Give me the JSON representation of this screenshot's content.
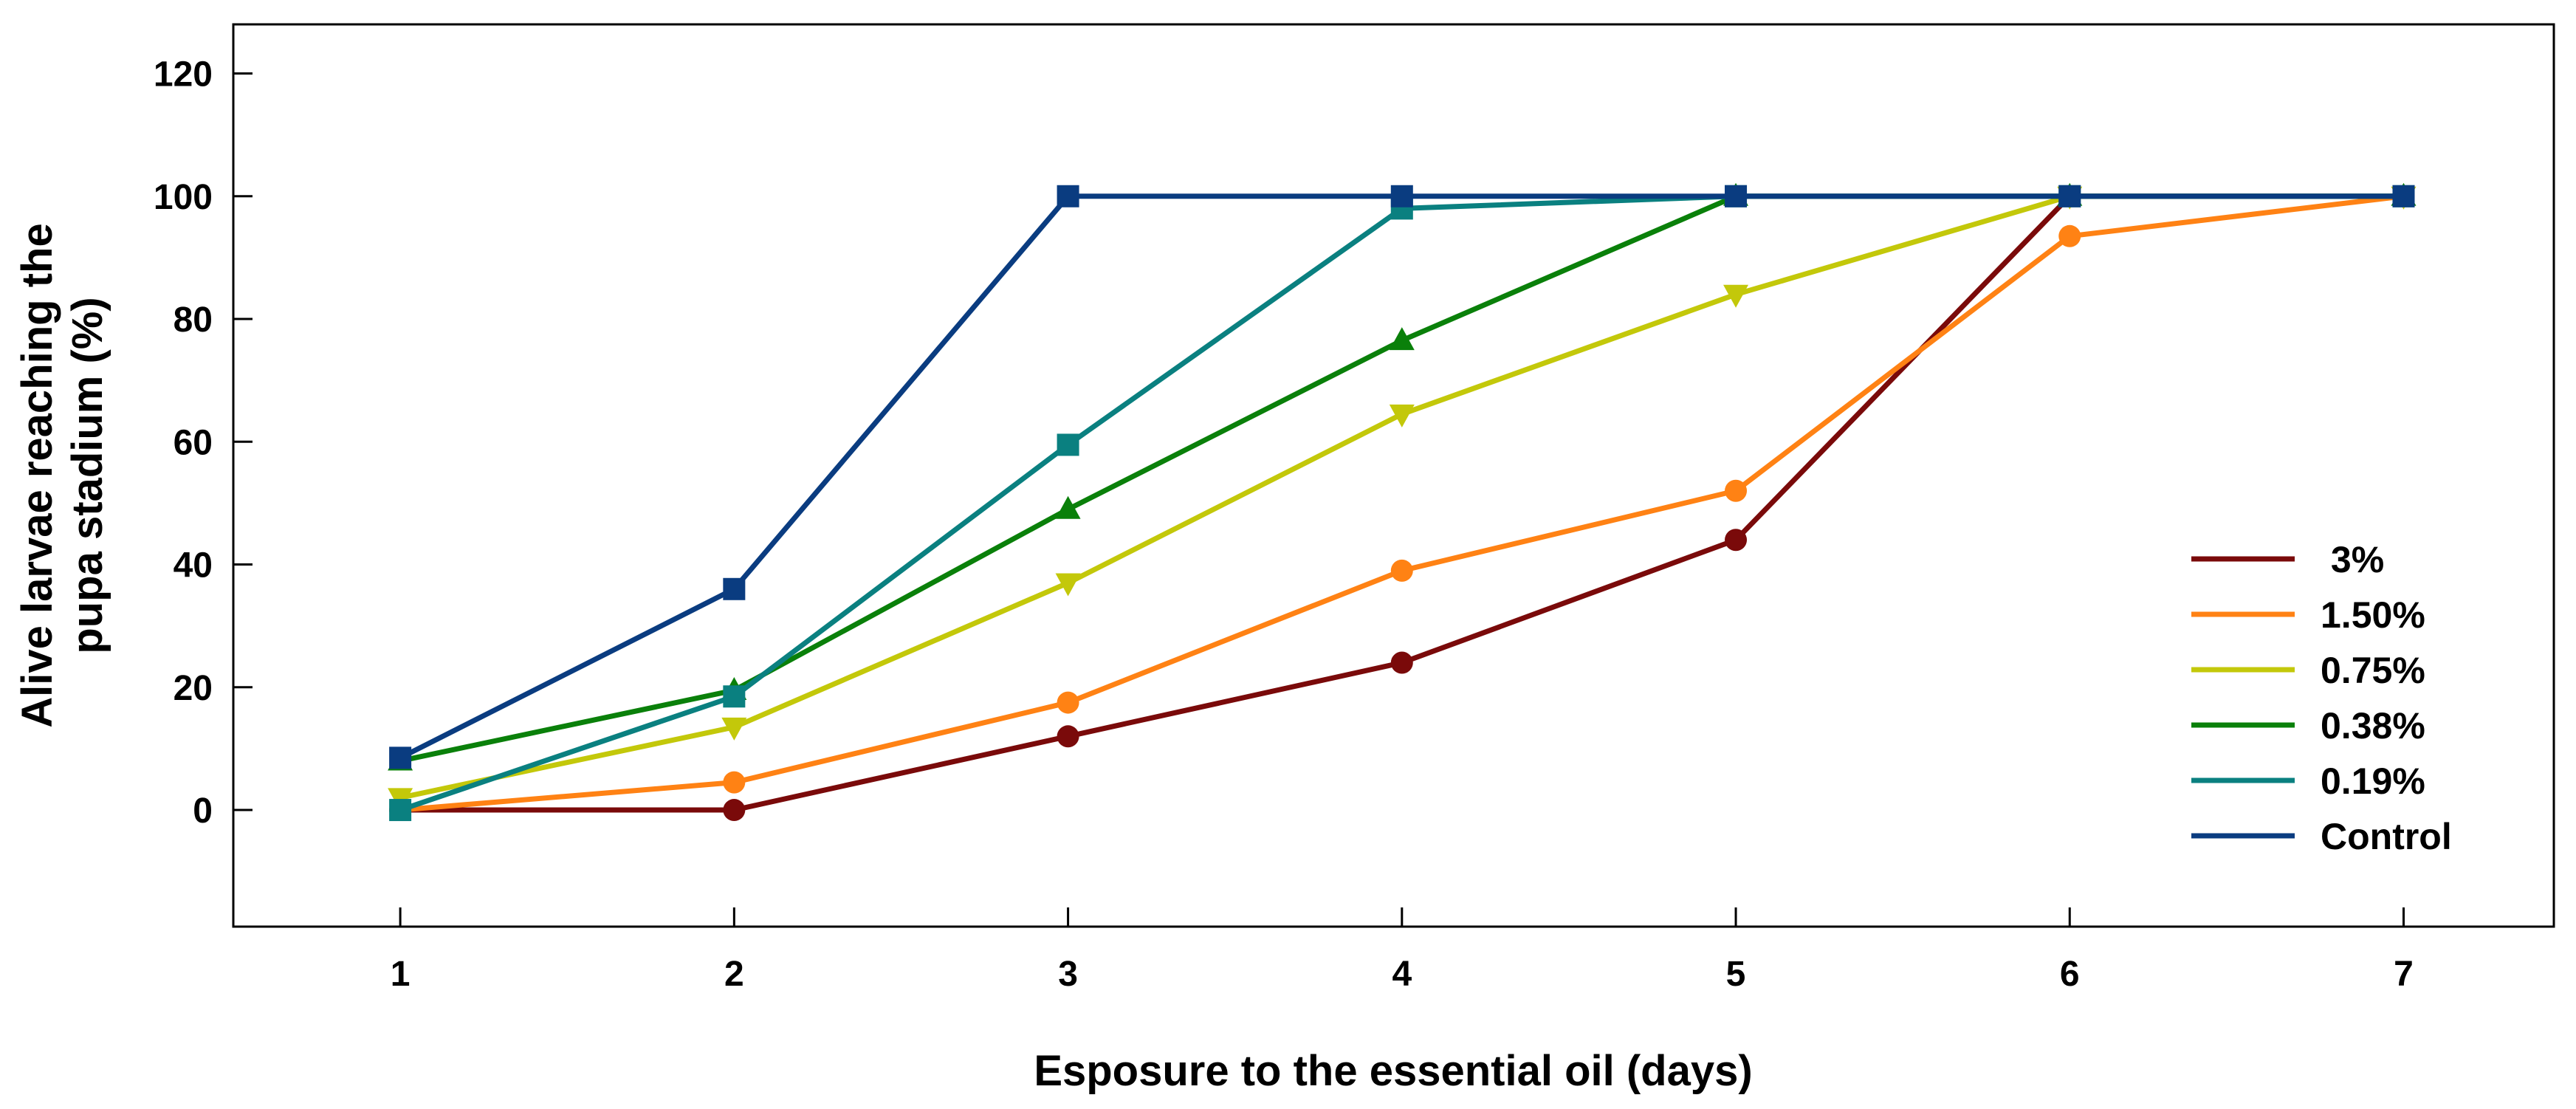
{
  "chart_data": {
    "type": "line",
    "title": "",
    "xlabel": "Esposure to the  essential oil (days)",
    "ylabel_lines": [
      "Alive larvae reaching the",
      "pupa stadium (%)"
    ],
    "x": [
      1,
      2,
      3,
      4,
      5,
      6,
      7
    ],
    "xticks": [
      1,
      2,
      3,
      4,
      5,
      6,
      7
    ],
    "yticks": [
      0,
      20,
      40,
      60,
      80,
      100,
      120
    ],
    "xlim": [
      0.5,
      7.45
    ],
    "ylim": [
      -19,
      128
    ],
    "grid": false,
    "legend_position": "bottom-right",
    "series": [
      {
        "name": " 3%",
        "color": "#7a0a0a",
        "marker": "circle",
        "values": [
          0,
          0,
          12,
          24,
          44,
          100,
          100
        ]
      },
      {
        "name": "1.50%",
        "color": "#ff8214",
        "marker": "circle",
        "values": [
          0,
          4.5,
          17.5,
          39,
          52,
          93.5,
          100
        ]
      },
      {
        "name": "0.75%",
        "color": "#c3c80a",
        "marker": "triangle-down",
        "values": [
          2,
          13.5,
          37,
          64.5,
          84,
          100,
          100
        ]
      },
      {
        "name": "0.38%",
        "color": "#0a800a",
        "marker": "triangle-up",
        "values": [
          8,
          19.5,
          49,
          76.5,
          100,
          100,
          100
        ]
      },
      {
        "name": "0.19%",
        "color": "#0a8080",
        "marker": "square",
        "values": [
          0,
          18.5,
          59.5,
          98,
          100,
          100,
          100
        ]
      },
      {
        "name": "Control",
        "color": "#0a3c80",
        "marker": "square",
        "values": [
          8.5,
          36,
          100,
          100,
          100,
          100,
          100
        ]
      }
    ]
  }
}
